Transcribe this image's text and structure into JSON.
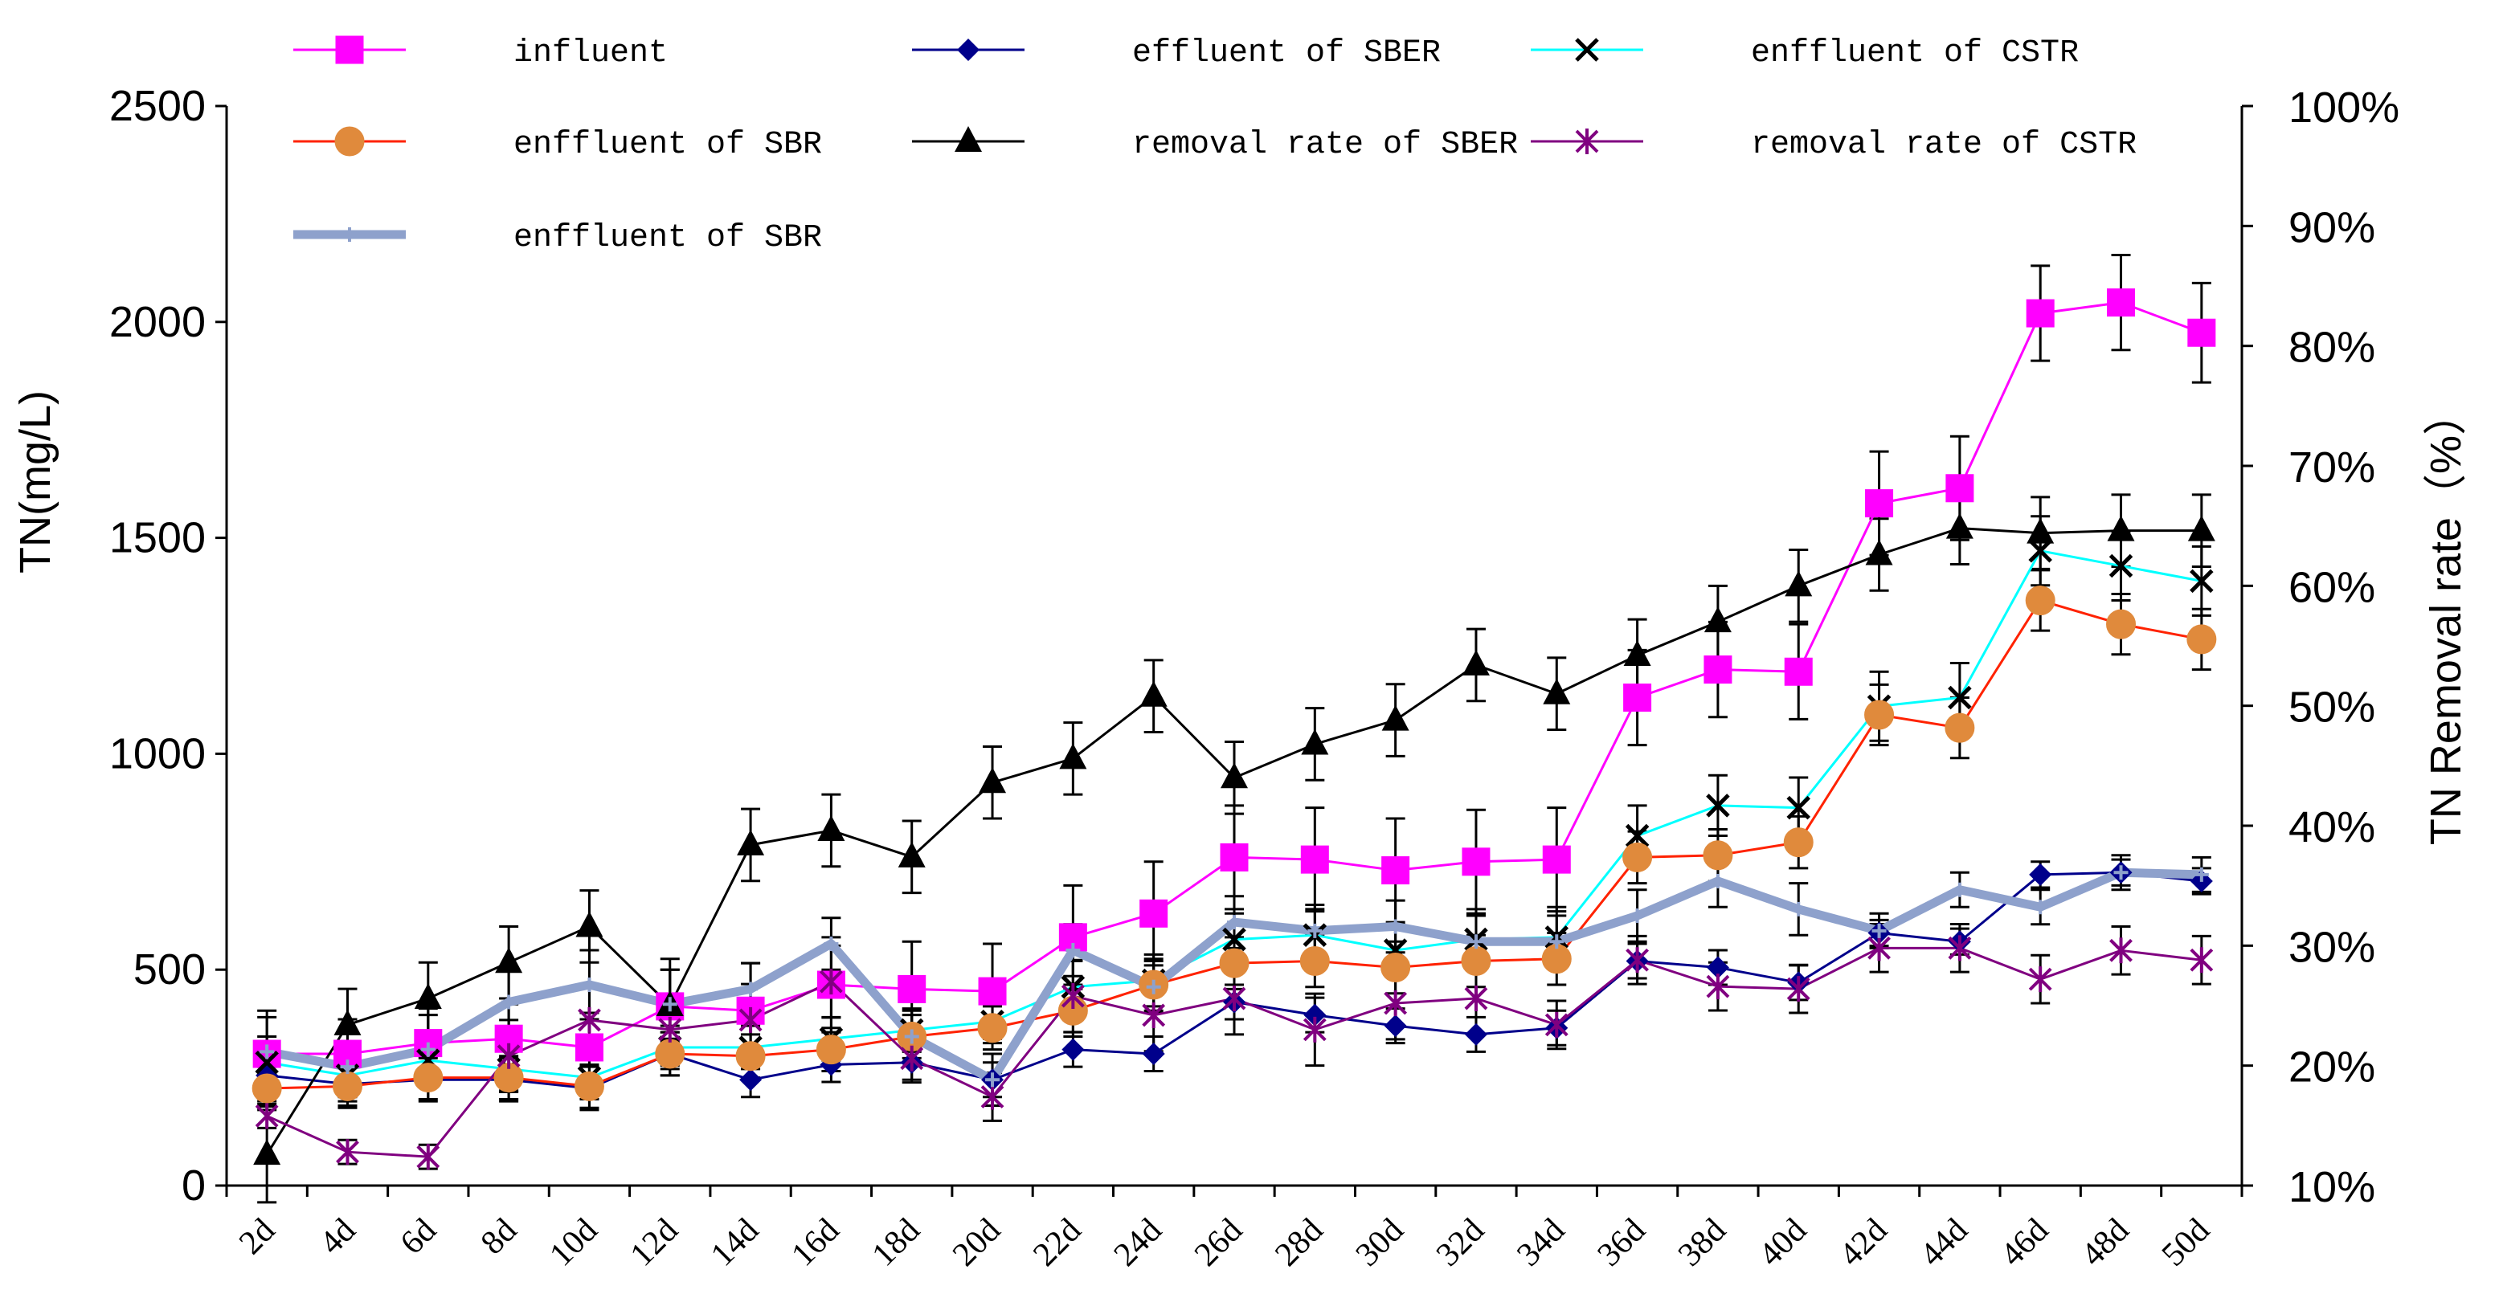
{
  "chart_data": {
    "type": "line",
    "title": "",
    "xlabel": "",
    "ylabel": "TN(mg/L)",
    "y2label": "TN Removal rate（%）",
    "ylim": [
      0,
      2500
    ],
    "y2lim": [
      10,
      100
    ],
    "y_ticks": [
      "0",
      "500",
      "1000",
      "1500",
      "2000",
      "2500"
    ],
    "y2_ticks": [
      "10%",
      "20%",
      "30%",
      "40%",
      "50%",
      "60%",
      "70%",
      "80%",
      "90%",
      "100%"
    ],
    "categories": [
      "2d",
      "4d",
      "6d",
      "8d",
      "10d",
      "12d",
      "14d",
      "16d",
      "18d",
      "20d",
      "22d",
      "24d",
      "26d",
      "28d",
      "30d",
      "32d",
      "34d",
      "36d",
      "38d",
      "40d",
      "42d",
      "44d",
      "46d",
      "48d",
      "50d"
    ],
    "legend_position": "top",
    "series": [
      {
        "name": "influent",
        "axis": "left",
        "color": "#ff00ff",
        "marker": "square",
        "line_width": 3,
        "values": [
          305,
          305,
          330,
          340,
          320,
          415,
          405,
          465,
          455,
          450,
          575,
          630,
          760,
          755,
          730,
          750,
          755,
          1130,
          1195,
          1190,
          1580,
          1615,
          2020,
          2045,
          1975
        ],
        "errors": [
          100,
          80,
          80,
          80,
          80,
          110,
          110,
          110,
          110,
          110,
          120,
          120,
          120,
          120,
          120,
          120,
          120,
          110,
          110,
          110,
          120,
          120,
          110,
          110,
          115
        ]
      },
      {
        "name": "effluent of SBER",
        "axis": "left",
        "color": "#00008b",
        "marker": "diamond",
        "line_width": 3,
        "values": [
          255,
          235,
          245,
          245,
          225,
          305,
          245,
          280,
          285,
          245,
          315,
          305,
          425,
          395,
          370,
          350,
          365,
          520,
          505,
          470,
          585,
          565,
          720,
          725,
          705
        ],
        "errors": [
          60,
          50,
          50,
          50,
          50,
          50,
          40,
          40,
          40,
          40,
          40,
          40,
          40,
          40,
          40,
          40,
          40,
          40,
          40,
          40,
          30,
          30,
          30,
          30,
          30
        ]
      },
      {
        "name": "enffluent of CSTR",
        "axis": "left",
        "color": "#00ffff",
        "marker": "x",
        "line_width": 3,
        "values": [
          285,
          255,
          290,
          270,
          250,
          320,
          320,
          340,
          360,
          380,
          460,
          475,
          570,
          580,
          545,
          570,
          575,
          810,
          880,
          875,
          1110,
          1130,
          1470,
          1435,
          1400
        ],
        "errors": [
          60,
          50,
          50,
          50,
          50,
          50,
          50,
          50,
          50,
          50,
          60,
          60,
          60,
          60,
          60,
          70,
          70,
          70,
          70,
          70,
          80,
          80,
          80,
          80,
          80
        ]
      },
      {
        "name": "enffluent of SBR",
        "axis": "left",
        "color": "#ff2200",
        "marker": "circle",
        "marker_color": "#e08a3c",
        "line_width": 3,
        "values": [
          225,
          230,
          250,
          250,
          230,
          305,
          300,
          315,
          345,
          365,
          405,
          465,
          515,
          520,
          505,
          520,
          525,
          760,
          765,
          795,
          1090,
          1060,
          1355,
          1300,
          1265
        ],
        "errors": [
          50,
          50,
          50,
          50,
          50,
          50,
          50,
          50,
          50,
          50,
          60,
          60,
          60,
          60,
          60,
          60,
          60,
          60,
          60,
          60,
          70,
          70,
          70,
          70,
          70
        ]
      },
      {
        "name": "removal rate of SBER",
        "axis": "right",
        "color": "#000000",
        "marker": "triangle",
        "line_width": 3,
        "values": [
          12.6,
          23.4,
          25.6,
          28.6,
          31.6,
          25.0,
          38.4,
          39.6,
          37.4,
          43.6,
          45.6,
          50.8,
          44.0,
          46.8,
          48.8,
          53.4,
          51.0,
          54.2,
          57.0,
          60.0,
          62.6,
          64.8,
          64.4,
          64.6,
          64.6
        ],
        "errors": [
          4,
          3,
          3,
          3,
          3,
          3,
          3,
          3,
          3,
          3,
          3,
          3,
          3,
          3,
          3,
          3,
          3,
          3,
          3,
          3,
          3,
          3,
          3,
          3,
          3
        ]
      },
      {
        "name": "removal rate of CSTR",
        "axis": "right",
        "color": "#800080",
        "marker": "star",
        "line_width": 3,
        "values": [
          15.8,
          12.8,
          12.4,
          20.8,
          23.8,
          23.0,
          23.8,
          27.0,
          20.6,
          17.4,
          25.8,
          24.2,
          25.6,
          23.0,
          25.2,
          25.6,
          23.4,
          28.8,
          26.6,
          26.4,
          29.8,
          29.8,
          27.2,
          29.6,
          28.8
        ],
        "errors": [
          1,
          1,
          1,
          3,
          3,
          3,
          3,
          3,
          2,
          2,
          3,
          3,
          3,
          3,
          3,
          3,
          2,
          2,
          2,
          2,
          2,
          2,
          2,
          2,
          2
        ]
      },
      {
        "name": "enffluent of SBR",
        "axis": "left",
        "color": "#8ea1cc",
        "marker": "plus",
        "line_width": 11,
        "values": [
          310,
          275,
          315,
          425,
          465,
          420,
          455,
          560,
          345,
          245,
          545,
          460,
          610,
          590,
          600,
          565,
          565,
          625,
          705,
          640,
          590,
          685,
          645,
          725,
          720
        ],
        "errors": [
          80,
          80,
          80,
          80,
          80,
          80,
          60,
          60,
          60,
          60,
          60,
          60,
          60,
          60,
          60,
          60,
          60,
          60,
          60,
          60,
          40,
          40,
          40,
          40,
          40
        ]
      }
    ]
  }
}
